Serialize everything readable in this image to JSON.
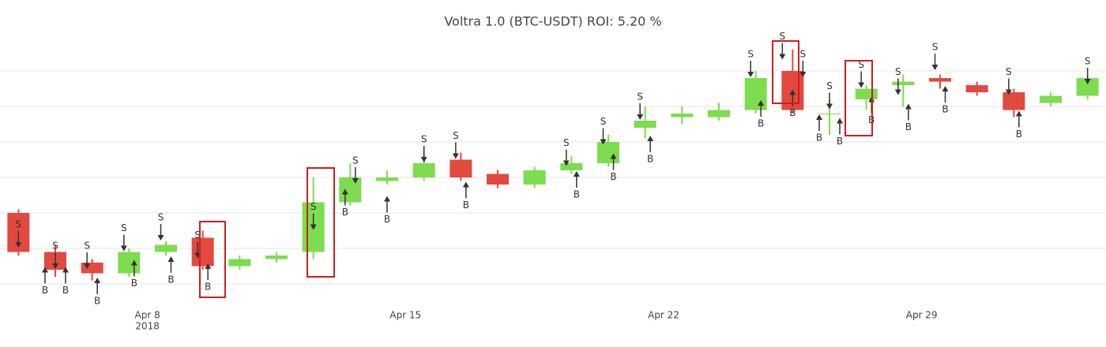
{
  "chart_data": {
    "type": "candlestick",
    "title": "Voltra 1.0 (BTC-USDT) ROI: 5.20 %",
    "x": [
      "2018-04-04",
      "2018-04-05",
      "2018-04-06",
      "2018-04-07",
      "2018-04-08",
      "2018-04-09",
      "2018-04-10",
      "2018-04-11",
      "2018-04-12",
      "2018-04-13",
      "2018-04-14",
      "2018-04-15",
      "2018-04-16",
      "2018-04-17",
      "2018-04-18",
      "2018-04-19",
      "2018-04-20",
      "2018-04-21",
      "2018-04-22",
      "2018-04-23",
      "2018-04-24",
      "2018-04-25",
      "2018-04-26",
      "2018-04-27",
      "2018-04-28",
      "2018-04-29",
      "2018-04-30",
      "2018-05-01",
      "2018-05-02",
      "2018-05-03"
    ],
    "open": [
      7500,
      6950,
      6800,
      6650,
      6950,
      7150,
      6750,
      6850,
      6950,
      7650,
      7950,
      8000,
      8250,
      8050,
      7900,
      8100,
      8200,
      8700,
      8850,
      8850,
      8950,
      9500,
      8900,
      9100,
      9300,
      9400,
      9300,
      9200,
      9050,
      9150
    ],
    "high": [
      7550,
      7050,
      6850,
      7000,
      7100,
      7250,
      6900,
      6950,
      8000,
      8200,
      8100,
      8400,
      8350,
      8100,
      8150,
      8300,
      8600,
      9000,
      9000,
      9050,
      9500,
      9800,
      9100,
      9300,
      9450,
      9450,
      9350,
      9250,
      9200,
      9450
    ],
    "low": [
      6900,
      6600,
      6550,
      6600,
      6900,
      6700,
      6700,
      6800,
      6850,
      7600,
      7900,
      7950,
      7950,
      7850,
      7850,
      8050,
      8150,
      8550,
      8750,
      8800,
      8900,
      8900,
      8600,
      8950,
      9000,
      9250,
      9150,
      8850,
      9000,
      9100
    ],
    "close": [
      6950,
      6700,
      6650,
      6950,
      7050,
      6750,
      6850,
      6900,
      7650,
      8000,
      8000,
      8200,
      8000,
      7900,
      8100,
      8200,
      8500,
      8800,
      8900,
      8950,
      9400,
      8950,
      8900,
      9250,
      9350,
      9350,
      9200,
      8950,
      9150,
      9400
    ],
    "increasing_color": "#7ddc4f",
    "decreasing_color": "#e2493f",
    "xlim": [
      "2018-04-04",
      "2018-05-04"
    ],
    "xticks": [
      {
        "value": "2018-04-08",
        "label": "Apr 8"
      },
      {
        "value": "2018-04-15",
        "label": "Apr 15"
      },
      {
        "value": "2018-04-22",
        "label": "Apr 22"
      },
      {
        "value": "2018-04-29",
        "label": "Apr 29"
      }
    ],
    "x_year_label": "2018",
    "ylim": [
      6200,
      9800
    ],
    "yticks": [
      6500,
      7000,
      7500,
      8000,
      8500,
      9000,
      9500
    ],
    "grid": true,
    "markers": [
      {
        "label": "S",
        "x": "2018-04-04",
        "price": 7000
      },
      {
        "label": "B",
        "x": "2018-04-05",
        "price": 6750
      },
      {
        "label": "S",
        "x": "2018-04-05",
        "price": 6700
      },
      {
        "label": "B",
        "x": "2018-04-05",
        "price": 6750
      },
      {
        "label": "S",
        "x": "2018-04-06",
        "price": 6700
      },
      {
        "label": "B",
        "x": "2018-04-06",
        "price": 6600
      },
      {
        "label": "S",
        "x": "2018-04-07",
        "price": 6950
      },
      {
        "label": "B",
        "x": "2018-04-07",
        "price": 6850
      },
      {
        "label": "S",
        "x": "2018-04-08",
        "price": 7100
      },
      {
        "label": "B",
        "x": "2018-04-08",
        "price": 6900
      },
      {
        "label": "S",
        "x": "2018-04-09",
        "price": 6850
      },
      {
        "label": "B",
        "x": "2018-04-09",
        "price": 6800
      },
      {
        "label": "S",
        "x": "2018-04-12",
        "price": 7250
      },
      {
        "label": "B",
        "x": "2018-04-13",
        "price": 7850
      },
      {
        "label": "S",
        "x": "2018-04-13",
        "price": 7900
      },
      {
        "label": "B",
        "x": "2018-04-14",
        "price": 7750
      },
      {
        "label": "S",
        "x": "2018-04-15",
        "price": 8200
      },
      {
        "label": "S",
        "x": "2018-04-16",
        "price": 8250
      },
      {
        "label": "B",
        "x": "2018-04-16",
        "price": 7950
      },
      {
        "label": "S",
        "x": "2018-04-19",
        "price": 8150
      },
      {
        "label": "B",
        "x": "2018-04-19",
        "price": 8100
      },
      {
        "label": "S",
        "x": "2018-04-20",
        "price": 8450
      },
      {
        "label": "B",
        "x": "2018-04-20",
        "price": 8350
      },
      {
        "label": "S",
        "x": "2018-04-21",
        "price": 8800
      },
      {
        "label": "B",
        "x": "2018-04-21",
        "price": 8600
      },
      {
        "label": "S",
        "x": "2018-04-24",
        "price": 9400
      },
      {
        "label": "B",
        "x": "2018-04-24",
        "price": 9100
      },
      {
        "label": "S",
        "x": "2018-04-25",
        "price": 9650
      },
      {
        "label": "B",
        "x": "2018-04-25",
        "price": 9250
      },
      {
        "label": "S",
        "x": "2018-04-25",
        "price": 9400
      },
      {
        "label": "B",
        "x": "2018-04-26",
        "price": 8900
      },
      {
        "label": "S",
        "x": "2018-04-26",
        "price": 8950
      },
      {
        "label": "B",
        "x": "2018-04-26",
        "price": 8850
      },
      {
        "label": "S",
        "x": "2018-04-27",
        "price": 9250
      },
      {
        "label": "B",
        "x": "2018-04-27",
        "price": 9150
      },
      {
        "label": "S",
        "x": "2018-04-28",
        "price": 9150
      },
      {
        "label": "B",
        "x": "2018-04-28",
        "price": 9050
      },
      {
        "label": "S",
        "x": "2018-04-29",
        "price": 9500
      },
      {
        "label": "B",
        "x": "2018-04-29",
        "price": 9300
      },
      {
        "label": "S",
        "x": "2018-05-01",
        "price": 9150
      },
      {
        "label": "B",
        "x": "2018-05-01",
        "price": 8950
      },
      {
        "label": "S",
        "x": "2018-05-03",
        "price": 9300
      }
    ]
  }
}
